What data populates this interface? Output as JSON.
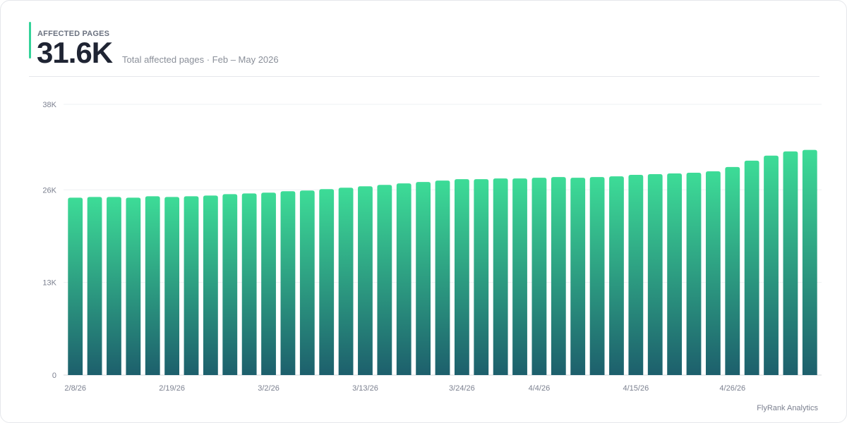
{
  "header": {
    "label": "AFFECTED PAGES",
    "value": "31.6K",
    "subtitle": "Total affected pages · Feb – May 2026"
  },
  "footer": {
    "brand": "FlyRank Analytics"
  },
  "colors": {
    "accent": "#34d399",
    "bar_top": "#3ddc97",
    "bar_bottom": "#1d5f6c",
    "grid": "#eef0f3"
  },
  "chart_data": {
    "type": "bar",
    "title": "",
    "xlabel": "",
    "ylabel": "",
    "ylim": [
      0,
      38000
    ],
    "yticks": [
      0,
      13000,
      26000,
      38000
    ],
    "ytick_labels": [
      "0",
      "13K",
      "26K",
      "38K"
    ],
    "grid": true,
    "x_tick_labels": [
      {
        "index": 0,
        "label": "2/8/26"
      },
      {
        "index": 5,
        "label": "2/19/26"
      },
      {
        "index": 10,
        "label": "3/2/26"
      },
      {
        "index": 15,
        "label": "3/13/26"
      },
      {
        "index": 20,
        "label": "3/24/26"
      },
      {
        "index": 24,
        "label": "4/4/26"
      },
      {
        "index": 29,
        "label": "4/15/26"
      },
      {
        "index": 34,
        "label": "4/26/26"
      }
    ],
    "series": [
      {
        "values": [
          24900,
          25000,
          25000,
          24900,
          25100,
          25000,
          25100,
          25200,
          25400,
          25500,
          25600,
          25800,
          25900,
          26100,
          26300,
          26500,
          26700,
          26900,
          27100,
          27300,
          27500,
          27500,
          27600,
          27600,
          27700,
          27800,
          27700,
          27800,
          27900,
          28100,
          28200,
          28300,
          28400,
          28600,
          29200,
          30100,
          30800,
          31400,
          31600
        ]
      }
    ]
  }
}
